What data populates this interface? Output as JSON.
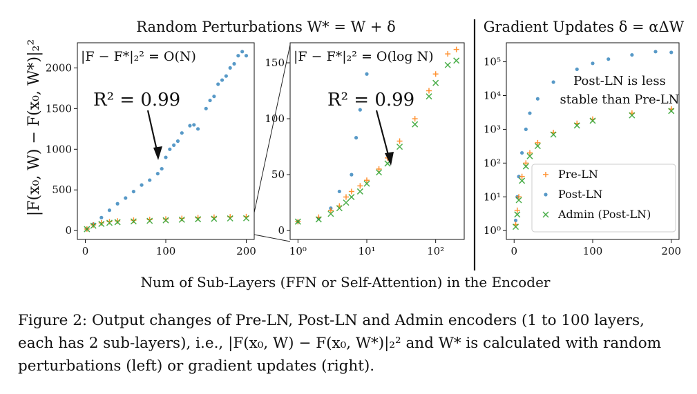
{
  "figure": {
    "left_title": "Random Perturbations W* = W + δ",
    "right_title": "Gradient Updates δ = αΔW",
    "ylabel": "|F(x₀, W) − F(x₀, W*)|₂²",
    "xlabel": "Num of Sub-Layers (FFN or Self-Attention) in the Encoder",
    "caption": "Figure 2: Output changes of Pre-LN, Post-LN and Admin encoders (1 to 100 layers, each has 2 sub-layers), i.e., |F(x₀, W) − F(x₀, W*)|₂² and W* is calculated with random perturbations (left) or gradient updates (right).",
    "colors": {
      "pre_ln": "#ff7f0e",
      "post_ln": "#1f77b4",
      "admin": "#2ca02c"
    }
  },
  "chart_data": [
    {
      "type": "scatter",
      "panel": "left",
      "xlim": [
        0,
        200
      ],
      "ylim": [
        0,
        2200
      ],
      "xticks": [
        "0",
        "100",
        "200"
      ],
      "yticks": [
        "0",
        "500",
        "1000",
        "1500",
        "2000"
      ],
      "annotations": [
        "|F − F*|₂² = O(N)",
        "R² = 0.99"
      ],
      "series": [
        {
          "name": "Pre-LN",
          "marker": "+",
          "x": [
            2,
            10,
            20,
            30,
            40,
            60,
            80,
            100,
            120,
            140,
            160,
            180,
            200
          ],
          "y": [
            20,
            70,
            95,
            110,
            118,
            128,
            136,
            143,
            150,
            158,
            165,
            170,
            172
          ]
        },
        {
          "name": "Post-LN",
          "marker": "o",
          "x": [
            2,
            10,
            20,
            30,
            40,
            50,
            60,
            70,
            80,
            90,
            95,
            100,
            105,
            110,
            115,
            120,
            130,
            135,
            140,
            150,
            155,
            160,
            165,
            170,
            175,
            180,
            185,
            190,
            195,
            200
          ],
          "y": [
            20,
            80,
            160,
            250,
            330,
            400,
            480,
            560,
            620,
            700,
            760,
            900,
            1000,
            1050,
            1100,
            1200,
            1290,
            1300,
            1250,
            1500,
            1600,
            1650,
            1800,
            1850,
            1900,
            2000,
            2050,
            2150,
            2200,
            2150
          ]
        },
        {
          "name": "Admin (Post-LN)",
          "marker": "x",
          "x": [
            2,
            10,
            20,
            30,
            40,
            60,
            80,
            100,
            120,
            140,
            160,
            180,
            200
          ],
          "y": [
            18,
            60,
            82,
            96,
            104,
            113,
            120,
            127,
            134,
            140,
            145,
            150,
            152
          ]
        }
      ]
    },
    {
      "type": "scatter",
      "panel": "left-zoom",
      "xscale": "log",
      "xlim": [
        1,
        200
      ],
      "ylim": [
        0,
        160
      ],
      "xticks": [
        "10⁰",
        "10¹",
        "10²"
      ],
      "yticks": [
        "0",
        "50",
        "100",
        "150"
      ],
      "annotations": [
        "|F − F*|₂² = O(log N)",
        "R² = 0.99"
      ],
      "series": [
        {
          "name": "Pre-LN",
          "marker": "+",
          "x": [
            1,
            2,
            3,
            4,
            5,
            6,
            8,
            10,
            15,
            20,
            30,
            50,
            80,
            100,
            150,
            200
          ],
          "y": [
            8,
            12,
            18,
            22,
            30,
            35,
            40,
            45,
            55,
            65,
            80,
            100,
            125,
            140,
            158,
            162
          ]
        },
        {
          "name": "Post-LN",
          "marker": "o",
          "x": [
            1,
            2,
            3,
            4,
            6,
            7,
            8,
            10
          ],
          "y": [
            8,
            11,
            20,
            35,
            50,
            83,
            108,
            140
          ]
        },
        {
          "name": "Admin (Post-LN)",
          "marker": "x",
          "x": [
            1,
            2,
            3,
            4,
            5,
            6,
            8,
            10,
            15,
            20,
            30,
            50,
            80,
            100,
            150,
            200
          ],
          "y": [
            8,
            10,
            15,
            20,
            25,
            30,
            35,
            42,
            52,
            60,
            75,
            95,
            120,
            132,
            148,
            152
          ]
        }
      ]
    },
    {
      "type": "scatter",
      "panel": "right",
      "yscale": "log",
      "xlim": [
        0,
        200
      ],
      "ylim": [
        1,
        200000
      ],
      "xticks": [
        "0",
        "100",
        "200"
      ],
      "yticks": [
        "10⁰",
        "10¹",
        "10²",
        "10³",
        "10⁴",
        "10⁵"
      ],
      "annotations": [
        "Post-LN is less",
        "stable than Pre-LN"
      ],
      "legend_position": "lower-right",
      "series": [
        {
          "name": "Pre-LN",
          "marker": "+",
          "x": [
            2,
            4,
            6,
            10,
            15,
            20,
            30,
            50,
            80,
            100,
            150,
            200
          ],
          "y": [
            1.5,
            4,
            10,
            40,
            100,
            200,
            400,
            800,
            1500,
            2000,
            3000,
            4000
          ]
        },
        {
          "name": "Post-LN",
          "marker": "o",
          "x": [
            2,
            4,
            6,
            10,
            15,
            20,
            30,
            50,
            80,
            100,
            120,
            150,
            180,
            200
          ],
          "y": [
            2,
            10,
            40,
            200,
            1000,
            3000,
            8000,
            25000,
            60000,
            90000,
            120000,
            160000,
            200000,
            190000
          ]
        },
        {
          "name": "Admin (Post-LN)",
          "marker": "x",
          "x": [
            2,
            4,
            6,
            10,
            15,
            20,
            30,
            50,
            80,
            100,
            150,
            200
          ],
          "y": [
            1.3,
            3,
            8,
            30,
            80,
            160,
            320,
            700,
            1300,
            1800,
            2600,
            3500
          ]
        }
      ]
    }
  ]
}
